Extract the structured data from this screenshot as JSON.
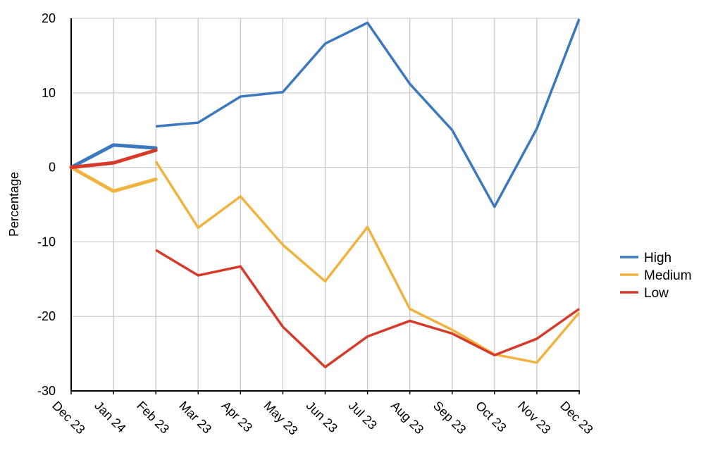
{
  "chart_data": {
    "type": "line",
    "title": "",
    "xlabel": "",
    "ylabel": "Percentage",
    "ylim": [
      -30,
      20
    ],
    "yticks": [
      20,
      10,
      0,
      -10,
      -20,
      -30
    ],
    "categories": [
      "Dec 23",
      "Jan 24",
      "Feb 23",
      "Mar 23",
      "Apr 23",
      "May 23",
      "Jun 23",
      "Jul 23",
      "Aug 23",
      "Sep 23",
      "Oct 23",
      "Nov 23",
      "Dec 23"
    ],
    "grid": true,
    "legend_position": "right",
    "series": [
      {
        "name": "High",
        "color": "#3b78bd",
        "segment_a": [
          0,
          3.0,
          2.6
        ],
        "segment_b": [
          5.5,
          6.0,
          9.5,
          10.1,
          16.6,
          19.4,
          11.2,
          5.0,
          -5.3,
          5.2,
          19.9
        ]
      },
      {
        "name": "Medium",
        "color": "#f0b33f",
        "segment_a": [
          0,
          -3.2,
          -1.6
        ],
        "segment_b": [
          0.8,
          -8.1,
          -3.9,
          -10.4,
          -15.3,
          -8.0,
          -19.0,
          -21.8,
          -25.1,
          -26.2,
          -19.5
        ]
      },
      {
        "name": "Low",
        "color": "#d63b2a",
        "segment_a": [
          0,
          0.6,
          2.3
        ],
        "segment_b": [
          -11.1,
          -14.5,
          -13.3,
          -21.4,
          -26.8,
          -22.7,
          -20.6,
          -22.3,
          -25.2,
          -23.0,
          -19.0
        ]
      }
    ]
  }
}
